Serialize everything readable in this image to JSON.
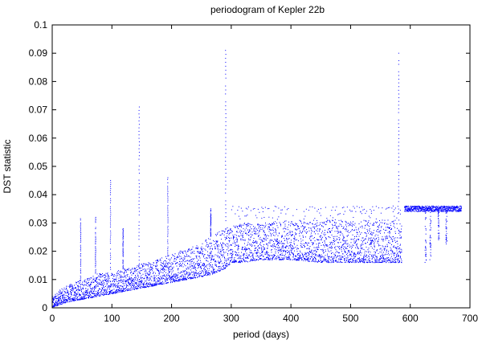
{
  "chart_data": {
    "type": "scatter",
    "title": "periodogram of Kepler 22b",
    "xlabel": "period (days)",
    "ylabel": "DST statistic",
    "xlim": [
      0,
      700
    ],
    "ylim": [
      0,
      0.1
    ],
    "xticks": [
      0,
      100,
      200,
      300,
      400,
      500,
      600,
      700
    ],
    "yticks": [
      0,
      0.01,
      0.02,
      0.03,
      0.04,
      0.05,
      0.06,
      0.07,
      0.08,
      0.09,
      0.1
    ],
    "xtick_labels": [
      "0",
      "100",
      "200",
      "300",
      "400",
      "500",
      "600",
      "700"
    ],
    "ytick_labels": [
      "0",
      "0.01",
      "0.02",
      "0.03",
      "0.04",
      "0.05",
      "0.06",
      "0.07",
      "0.08",
      "0.09",
      "0.1"
    ],
    "grid": false,
    "legend": "none",
    "point_color": "#0000ff",
    "series": [
      {
        "envelope": {
          "x": [
            0,
            10,
            25,
            50,
            75,
            100,
            125,
            150,
            175,
            200,
            225,
            250,
            270,
            290,
            300,
            320,
            350,
            400,
            450,
            500,
            540,
            575,
            585
          ],
          "y_low": [
            0.0,
            0.001,
            0.002,
            0.003,
            0.004,
            0.005,
            0.006,
            0.007,
            0.008,
            0.009,
            0.01,
            0.011,
            0.012,
            0.014,
            0.016,
            0.016,
            0.017,
            0.017,
            0.016,
            0.016,
            0.016,
            0.016,
            0.016
          ],
          "y_high": [
            0.004,
            0.006,
            0.008,
            0.01,
            0.012,
            0.013,
            0.014,
            0.016,
            0.017,
            0.019,
            0.021,
            0.023,
            0.026,
            0.028,
            0.029,
            0.03,
            0.03,
            0.031,
            0.031,
            0.031,
            0.031,
            0.031,
            0.031
          ]
        },
        "spikes": [
          {
            "x": 47,
            "y_top": 0.032
          },
          {
            "x": 72,
            "y_top": 0.032
          },
          {
            "x": 97,
            "y_top": 0.045
          },
          {
            "x": 118,
            "y_top": 0.028
          },
          {
            "x": 145,
            "y_top": 0.071
          },
          {
            "x": 193,
            "y_top": 0.046
          },
          {
            "x": 265,
            "y_top": 0.035
          },
          {
            "x": 290,
            "y_top": 0.091
          },
          {
            "x": 580,
            "y_top": 0.09
          }
        ],
        "upper_band": {
          "x": [
            300,
            585
          ],
          "y": [
            0.034,
            0.036
          ]
        },
        "plateau": {
          "x": [
            590,
            685
          ],
          "y": [
            0.034,
            0.036
          ]
        },
        "dips": [
          {
            "x": 625,
            "y_low": 0.016
          },
          {
            "x": 633,
            "y_low": 0.017
          },
          {
            "x": 647,
            "y_low": 0.024
          },
          {
            "x": 660,
            "y_low": 0.022
          }
        ]
      }
    ]
  }
}
